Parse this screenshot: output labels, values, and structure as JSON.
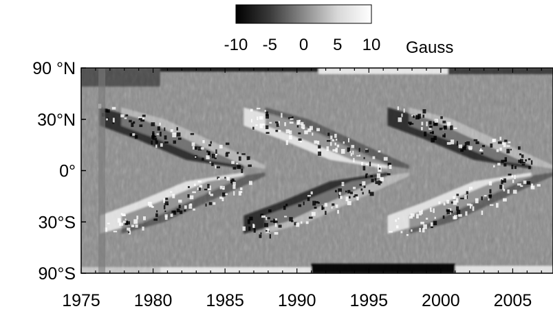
{
  "chart_data": {
    "type": "heatmap",
    "title": "",
    "xlabel": "",
    "ylabel": "",
    "x_ticks": [
      "1975",
      "1980",
      "1985",
      "1990",
      "1995",
      "2000",
      "2005"
    ],
    "x_tick_values": [
      1975,
      1980,
      1985,
      1990,
      1995,
      2000,
      2005
    ],
    "xlim": [
      1975,
      2007.8
    ],
    "y_ticks": [
      "90 °N",
      "30°N",
      "0°",
      "30°S",
      "90°S"
    ],
    "y_tick_values": [
      90,
      30,
      0,
      -30,
      -90
    ],
    "ylim": [
      -90,
      90
    ],
    "y_scale": "sine of latitude",
    "colorbar": {
      "unit": "Gauss",
      "tick_labels": [
        "-10",
        "-5",
        "0",
        "5",
        "10"
      ],
      "tick_values": [
        -10,
        -5,
        0,
        5,
        10
      ],
      "range": [
        -10,
        10
      ],
      "colormap": "grayscale (black = negative, white = positive)"
    },
    "series": [
      {
        "values": [
          {
            "cycle_start": 1976,
            "north_low_lat_sign": "negative",
            "south_low_lat_sign": "positive",
            "latitude_band": "bands drifting from ~35° toward equator"
          },
          {
            "cycle_start": 1986,
            "north_low_lat_sign": "positive",
            "south_low_lat_sign": "negative",
            "latitude_band": "bands drifting from ~35° toward equator"
          },
          {
            "cycle_start": 1996,
            "north_low_lat_sign": "negative",
            "south_low_lat_sign": "positive",
            "latitude_band": "bands drifting from ~35° toward equator"
          }
        ]
      }
    ],
    "grid": false,
    "legend": "colorbar top-center"
  }
}
